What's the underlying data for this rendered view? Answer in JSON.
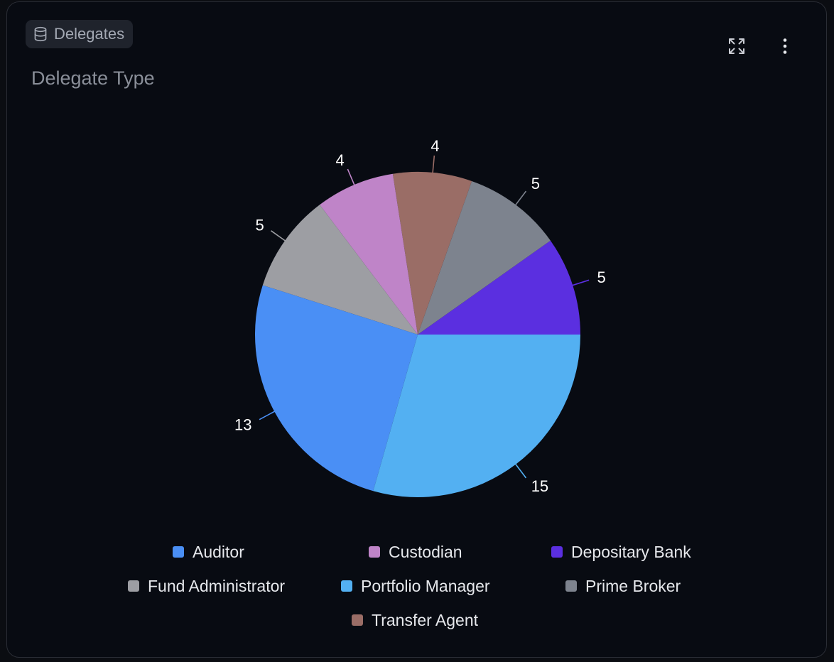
{
  "header": {
    "source_label": "Delegates",
    "source_icon": "database-icon",
    "expand_icon": "expand-icon",
    "menu_icon": "more-vertical-icon"
  },
  "chart_data": {
    "type": "pie",
    "title": "Delegate Type",
    "legend_position": "bottom",
    "start_angle_deg": 0,
    "direction": "counterclockwise",
    "slices": [
      {
        "label": "Depositary Bank",
        "value": 5,
        "color": "#5b2fe0"
      },
      {
        "label": "Prime Broker",
        "value": 5,
        "color": "#7d838e"
      },
      {
        "label": "Transfer Agent",
        "value": 4,
        "color": "#9a6d66"
      },
      {
        "label": "Custodian",
        "value": 4,
        "color": "#bf84c8"
      },
      {
        "label": "Fund Administrator",
        "value": 5,
        "color": "#9d9ea3"
      },
      {
        "label": "Auditor",
        "value": 13,
        "color": "#4a8ff5"
      },
      {
        "label": "Portfolio Manager",
        "value": 15,
        "color": "#53b0f2"
      }
    ],
    "legend": [
      {
        "label": "Auditor",
        "color": "#4a8ff5"
      },
      {
        "label": "Custodian",
        "color": "#bf84c8"
      },
      {
        "label": "Depositary Bank",
        "color": "#5b2fe0"
      },
      {
        "label": "Fund Administrator",
        "color": "#9d9ea3"
      },
      {
        "label": "Portfolio Manager",
        "color": "#53b0f2"
      },
      {
        "label": "Prime Broker",
        "color": "#7d838e"
      },
      {
        "label": "Transfer Agent",
        "color": "#9a6d66"
      }
    ]
  }
}
